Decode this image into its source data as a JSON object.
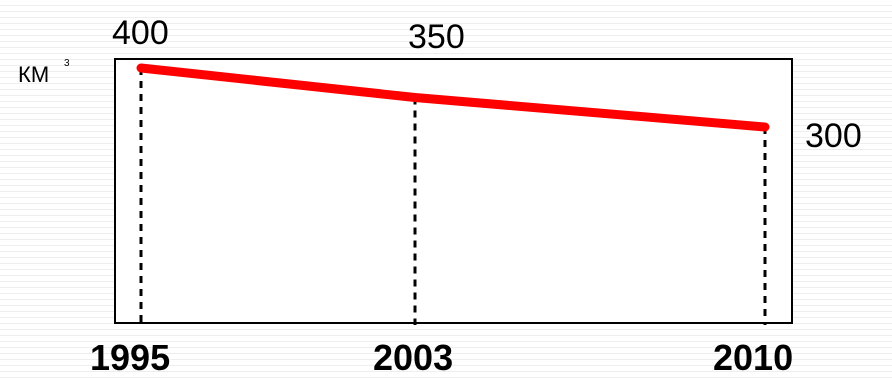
{
  "chart_data": {
    "type": "line",
    "x": [
      "1995",
      "2003",
      "2010"
    ],
    "values": [
      400,
      350,
      300
    ],
    "value_labels": [
      "400",
      "350",
      "300"
    ],
    "ylabel": "КМ",
    "ylabel_superscript": "3",
    "xlabel": "",
    "title": "",
    "line_color": "#ff0000",
    "grid": false,
    "reference_lines": "dashed vertical lines at each year"
  }
}
